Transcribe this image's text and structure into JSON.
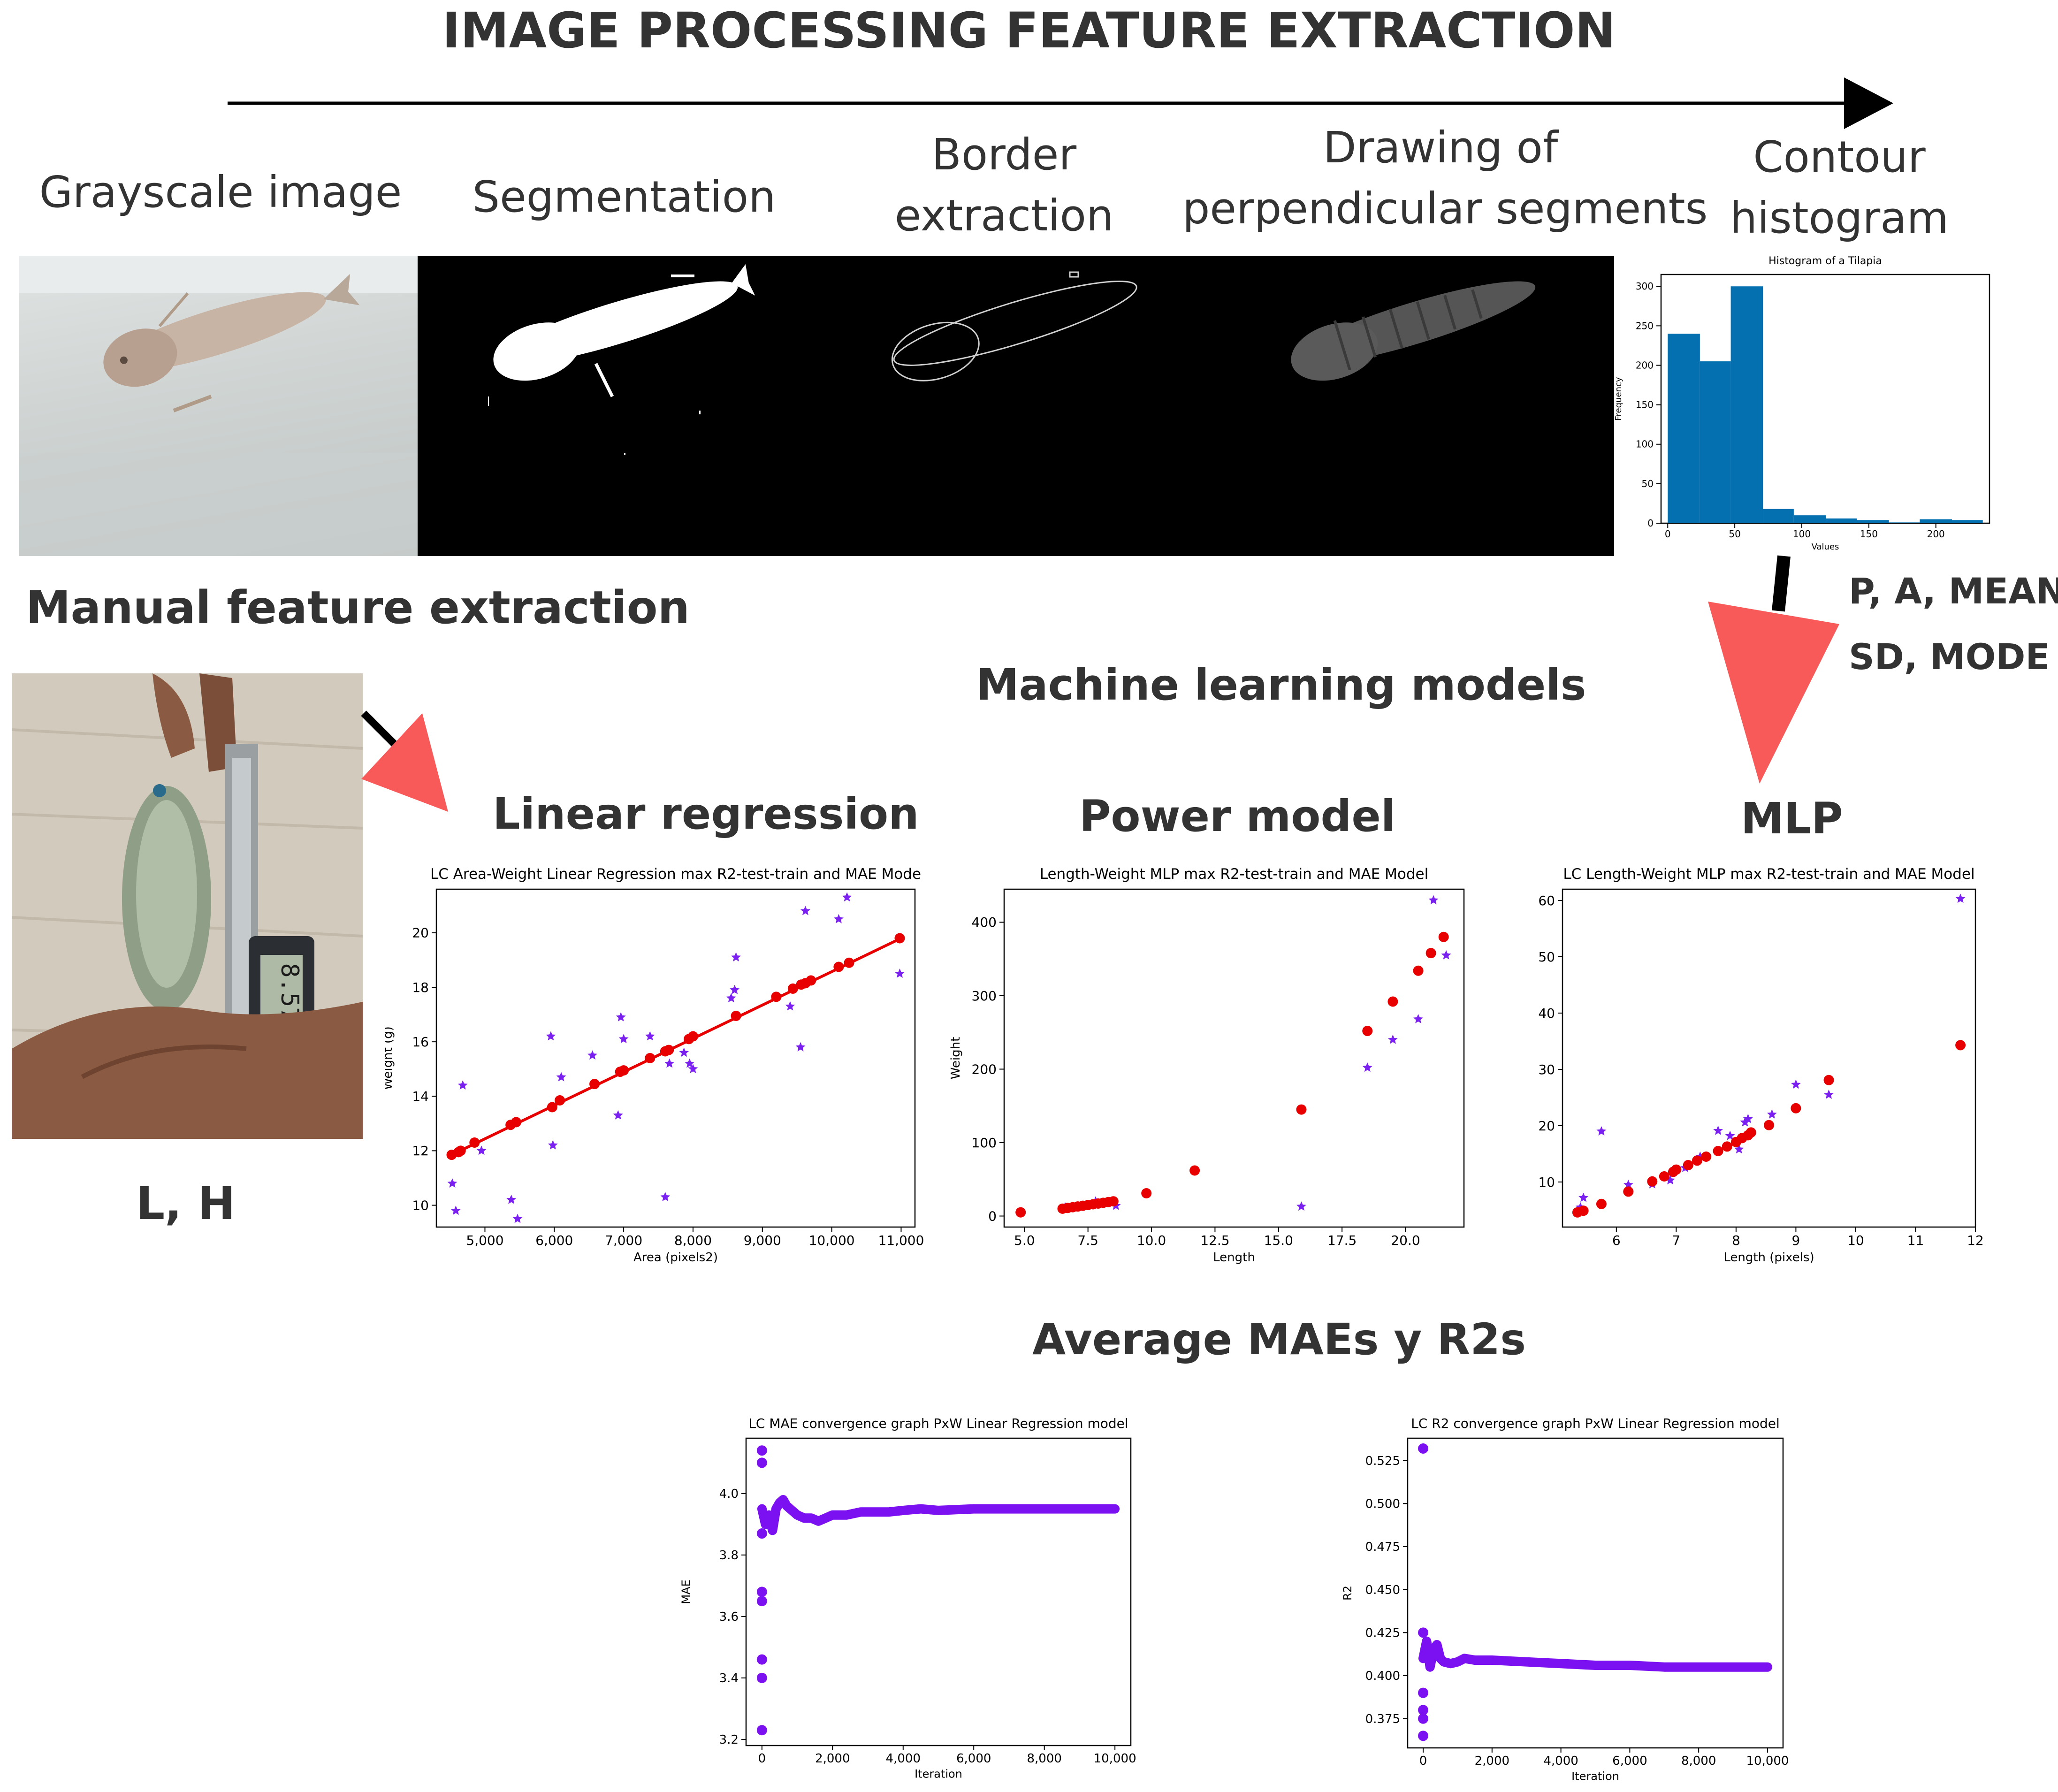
{
  "header": {
    "title": "IMAGE PROCESSING FEATURE EXTRACTION",
    "arrow_color": "#000000"
  },
  "pipeline": {
    "stages": [
      {
        "label": "Grayscale image"
      },
      {
        "label": "Segmentation"
      },
      {
        "label": "Border extraction",
        "line1": "Border",
        "line2": "extraction"
      },
      {
        "label": "Drawing of perpendicular segments",
        "line1": "Drawing of",
        "line2": "perpendicular segments"
      },
      {
        "label": "Contour histogram",
        "line1": "Contour",
        "line2": "histogram"
      }
    ],
    "features_line1": "P, A, MEAN,",
    "features_line2": "SD, MODE"
  },
  "manual": {
    "title": "Manual feature extraction",
    "features": "L, H",
    "caliper_reading": "8.57"
  },
  "ml": {
    "title": "Machine learning models",
    "models": [
      "Linear regression",
      "Power model",
      "MLP"
    ]
  },
  "averages": {
    "title": "Average MAEs y R2s"
  },
  "colors": {
    "accent_arrow": "#f85a5a",
    "prediction_red": "#e80000",
    "actual_purple": "#7a20f0",
    "hist_blue": "#0570b0",
    "convergence_purple": "#7b10f0"
  },
  "chart_data": [
    {
      "id": "histogram",
      "type": "bar",
      "title": "Histogram of a Tilapia",
      "xlabel": "Values",
      "ylabel": "Frequency",
      "xlim": [
        -5,
        240
      ],
      "ylim": [
        0,
        315
      ],
      "xticks": [
        0,
        50,
        100,
        150,
        200
      ],
      "yticks": [
        0,
        50,
        100,
        150,
        200,
        250,
        300
      ],
      "bins": [
        {
          "x0": 0,
          "x1": 24,
          "value": 240
        },
        {
          "x0": 24,
          "x1": 47,
          "value": 205
        },
        {
          "x0": 47,
          "x1": 71,
          "value": 300
        },
        {
          "x0": 71,
          "x1": 94,
          "value": 18
        },
        {
          "x0": 94,
          "x1": 118,
          "value": 10
        },
        {
          "x0": 118,
          "x1": 141,
          "value": 6
        },
        {
          "x0": 141,
          "x1": 165,
          "value": 4
        },
        {
          "x0": 165,
          "x1": 188,
          "value": 1
        },
        {
          "x0": 188,
          "x1": 212,
          "value": 5
        },
        {
          "x0": 212,
          "x1": 235,
          "value": 4
        }
      ]
    },
    {
      "id": "linear",
      "type": "scatter",
      "title": "LC Area-Weight Linear Regression max R2-test-train and MAE Mode",
      "xlabel": "Area (pixels2)",
      "ylabel": "Weight (g)",
      "xlim": [
        4300,
        11200
      ],
      "ylim": [
        9.2,
        21.6
      ],
      "xticks": [
        5000,
        6000,
        7000,
        8000,
        9000,
        10000,
        11000
      ],
      "xtick_labels": [
        "5,000",
        "6,000",
        "7,000",
        "8,000",
        "9,000",
        "10,000",
        "11,000"
      ],
      "yticks": [
        10,
        12,
        14,
        16,
        18,
        20
      ],
      "line": {
        "x": [
          4520,
          11000
        ],
        "y": [
          11.85,
          19.8
        ]
      },
      "predicted": {
        "x": [
          4520,
          4620,
          4650,
          4850,
          5370,
          5450,
          5970,
          6080,
          6580,
          6950,
          7000,
          7380,
          7600,
          7650,
          7940,
          8000,
          8620,
          9200,
          9440,
          9560,
          9620,
          9700,
          10100,
          10250,
          10980
        ],
        "y": [
          11.85,
          11.95,
          12.0,
          12.3,
          12.95,
          13.05,
          13.6,
          13.85,
          14.45,
          14.9,
          14.95,
          15.4,
          15.65,
          15.7,
          16.1,
          16.2,
          16.95,
          17.65,
          17.95,
          18.1,
          18.15,
          18.25,
          18.75,
          18.9,
          19.8
        ]
      },
      "actual": {
        "x": [
          4530,
          4580,
          4680,
          4950,
          5380,
          5470,
          5950,
          5980,
          6100,
          6550,
          6920,
          6960,
          7000,
          7380,
          7600,
          7660,
          7870,
          7950,
          8000,
          8550,
          8600,
          8620,
          9400,
          9550,
          9620,
          10100,
          10220,
          10980
        ],
        "y": [
          10.8,
          9.8,
          14.4,
          12.0,
          10.2,
          9.5,
          16.2,
          12.2,
          14.7,
          15.5,
          13.3,
          16.9,
          16.1,
          16.2,
          10.3,
          15.2,
          15.6,
          15.2,
          15.0,
          17.6,
          17.9,
          19.1,
          17.3,
          15.8,
          20.8,
          20.5,
          21.3,
          18.5
        ]
      }
    },
    {
      "id": "power",
      "type": "scatter",
      "title": "Length-Weight MLP max R2-test-train and MAE Model",
      "xlabel": "Length",
      "ylabel": "Weight",
      "xlim": [
        4.2,
        22.3
      ],
      "ylim": [
        -15,
        445
      ],
      "xticks": [
        5.0,
        7.5,
        10.0,
        12.5,
        15.0,
        17.5,
        20.0
      ],
      "xtick_labels": [
        "5.0",
        "7.5",
        "10.0",
        "12.5",
        "15.0",
        "17.5",
        "20.0"
      ],
      "yticks": [
        0,
        100,
        200,
        300,
        400
      ],
      "predicted": {
        "x": [
          4.85,
          6.5,
          6.7,
          6.9,
          7.1,
          7.3,
          7.5,
          7.7,
          7.9,
          8.1,
          8.3,
          8.5,
          9.8,
          11.7,
          15.9,
          18.5,
          19.5,
          20.5,
          21.0,
          21.5
        ],
        "y": [
          5,
          10,
          11,
          12,
          13,
          14,
          15,
          16,
          17,
          18,
          19,
          20,
          31,
          62,
          145,
          252,
          292,
          334,
          358,
          380
        ]
      },
      "actual": {
        "x": [
          6.6,
          7.8,
          8.6,
          15.9,
          18.5,
          19.5,
          20.5,
          21.1,
          21.6
        ],
        "y": [
          12,
          20,
          14,
          13,
          202,
          240,
          268,
          430,
          355
        ]
      }
    },
    {
      "id": "mlp",
      "type": "scatter",
      "title": "LC Length-Weight MLP max R2-test-train and MAE Model",
      "xlabel": "Length (pixels)",
      "ylabel": "",
      "xlim": [
        5.1,
        12.0
      ],
      "ylim": [
        2.0,
        62.0
      ],
      "xticks": [
        6,
        7,
        8,
        9,
        10,
        11,
        12
      ],
      "xtick_labels": [
        "6",
        "7",
        "8",
        "9",
        "10",
        "11",
        "12"
      ],
      "yticks": [
        10,
        20,
        30,
        40,
        50,
        60
      ],
      "predicted": {
        "x": [
          5.35,
          5.45,
          5.75,
          6.2,
          6.6,
          6.8,
          6.95,
          7.0,
          7.2,
          7.35,
          7.5,
          7.7,
          7.85,
          8.0,
          8.1,
          8.2,
          8.25,
          8.55,
          9.0,
          9.55,
          11.75
        ],
        "y": [
          4.6,
          4.9,
          6.1,
          8.3,
          10.1,
          11.0,
          11.8,
          12.2,
          13.0,
          13.8,
          14.5,
          15.5,
          16.3,
          17.1,
          17.8,
          18.3,
          18.8,
          20.1,
          23.1,
          28.1,
          34.3
        ]
      },
      "actual": {
        "x": [
          5.4,
          5.45,
          5.75,
          6.2,
          6.6,
          6.9,
          7.15,
          7.4,
          7.7,
          7.9,
          8.05,
          8.15,
          8.2,
          8.6,
          9.0,
          9.55,
          11.75
        ],
        "y": [
          5.5,
          7.2,
          19.0,
          9.5,
          9.6,
          10.3,
          12.5,
          14.5,
          19.1,
          18.2,
          15.8,
          20.6,
          21.2,
          22.0,
          27.3,
          25.5,
          60.3
        ]
      }
    },
    {
      "id": "mae",
      "type": "scatter",
      "title": "LC MAE convergence graph  PxW Linear Regression model",
      "xlabel": "Iteration",
      "ylabel": "MAE",
      "xlim": [
        -450,
        10450
      ],
      "ylim": [
        3.18,
        4.18
      ],
      "xticks": [
        0,
        2000,
        4000,
        6000,
        8000,
        10000
      ],
      "xtick_labels": [
        "0",
        "2,000",
        "4,000",
        "6,000",
        "8,000",
        "10,000"
      ],
      "yticks": [
        3.2,
        3.4,
        3.6,
        3.8,
        4.0
      ],
      "ytick_labels": [
        "3.2",
        "3.4",
        "3.6",
        "3.8",
        "4.0"
      ],
      "outliers": {
        "x": [
          0,
          0,
          0,
          0,
          0,
          0,
          0,
          0
        ],
        "y": [
          3.23,
          3.4,
          3.46,
          3.65,
          3.68,
          3.87,
          4.14,
          4.1
        ]
      },
      "curve": {
        "x": [
          0,
          100,
          200,
          300,
          400,
          500,
          600,
          700,
          800,
          900,
          1000,
          1200,
          1400,
          1600,
          1800,
          2000,
          2400,
          2800,
          3200,
          3600,
          4000,
          4500,
          5000,
          6000,
          7000,
          8000,
          9000,
          10000
        ],
        "y": [
          3.95,
          3.9,
          3.93,
          3.88,
          3.95,
          3.97,
          3.98,
          3.96,
          3.95,
          3.94,
          3.93,
          3.92,
          3.92,
          3.91,
          3.92,
          3.93,
          3.93,
          3.94,
          3.94,
          3.94,
          3.945,
          3.95,
          3.945,
          3.95,
          3.95,
          3.95,
          3.95,
          3.95
        ]
      }
    },
    {
      "id": "r2",
      "type": "scatter",
      "title": "LC R2 convergence graph PxW Linear Regression model",
      "xlabel": "Iteration",
      "ylabel": "R2",
      "xlim": [
        -450,
        10450
      ],
      "ylim": [
        0.358,
        0.538
      ],
      "xticks": [
        0,
        2000,
        4000,
        6000,
        8000,
        10000
      ],
      "xtick_labels": [
        "0",
        "2,000",
        "4,000",
        "6,000",
        "8,000",
        "10,000"
      ],
      "yticks": [
        0.375,
        0.4,
        0.425,
        0.45,
        0.475,
        0.5,
        0.525
      ],
      "ytick_labels": [
        "0.375",
        "0.400",
        "0.425",
        "0.450",
        "0.475",
        "0.500",
        "0.525"
      ],
      "outliers": {
        "x": [
          0,
          0,
          0,
          0,
          0,
          0
        ],
        "y": [
          0.532,
          0.365,
          0.375,
          0.38,
          0.39,
          0.425
        ]
      },
      "curve": {
        "x": [
          0,
          100,
          200,
          300,
          400,
          500,
          600,
          800,
          1000,
          1200,
          1500,
          2000,
          3000,
          4000,
          5000,
          6000,
          7000,
          8000,
          9000,
          10000
        ],
        "y": [
          0.41,
          0.42,
          0.405,
          0.415,
          0.418,
          0.41,
          0.408,
          0.407,
          0.408,
          0.41,
          0.409,
          0.409,
          0.408,
          0.407,
          0.406,
          0.406,
          0.405,
          0.405,
          0.405,
          0.405
        ]
      }
    }
  ]
}
